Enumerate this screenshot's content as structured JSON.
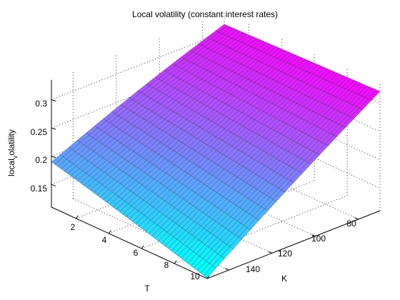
{
  "chart_data": {
    "type": "surface3d",
    "title": "Local volatility (constant interest rates)",
    "xlabel": "T",
    "ylabel": "K",
    "zlabel": "local volatility",
    "zlabel_display": {
      "main": "local",
      "sub": "v",
      "rest": "olatility"
    },
    "x_ticks": [
      "2",
      "4",
      "6",
      "8",
      "10"
    ],
    "y_ticks": [
      "80",
      "100",
      "120",
      "140"
    ],
    "z_ticks": [
      "0.15",
      "0.2",
      "0.25",
      "0.3"
    ],
    "xlim": [
      0.5,
      10
    ],
    "ylim": [
      70,
      150
    ],
    "zlim": [
      0.11,
      0.335
    ],
    "grid": true,
    "colormap": "cool",
    "grid_resolution": {
      "T_steps": 48,
      "K_steps": 20
    },
    "surface_samples": {
      "T": [
        0.5,
        10
      ],
      "K": [
        70,
        150
      ],
      "values": [
        [
          0.3133,
          0.19
        ],
        [
          0.3209,
          0.123
        ]
      ]
    }
  }
}
